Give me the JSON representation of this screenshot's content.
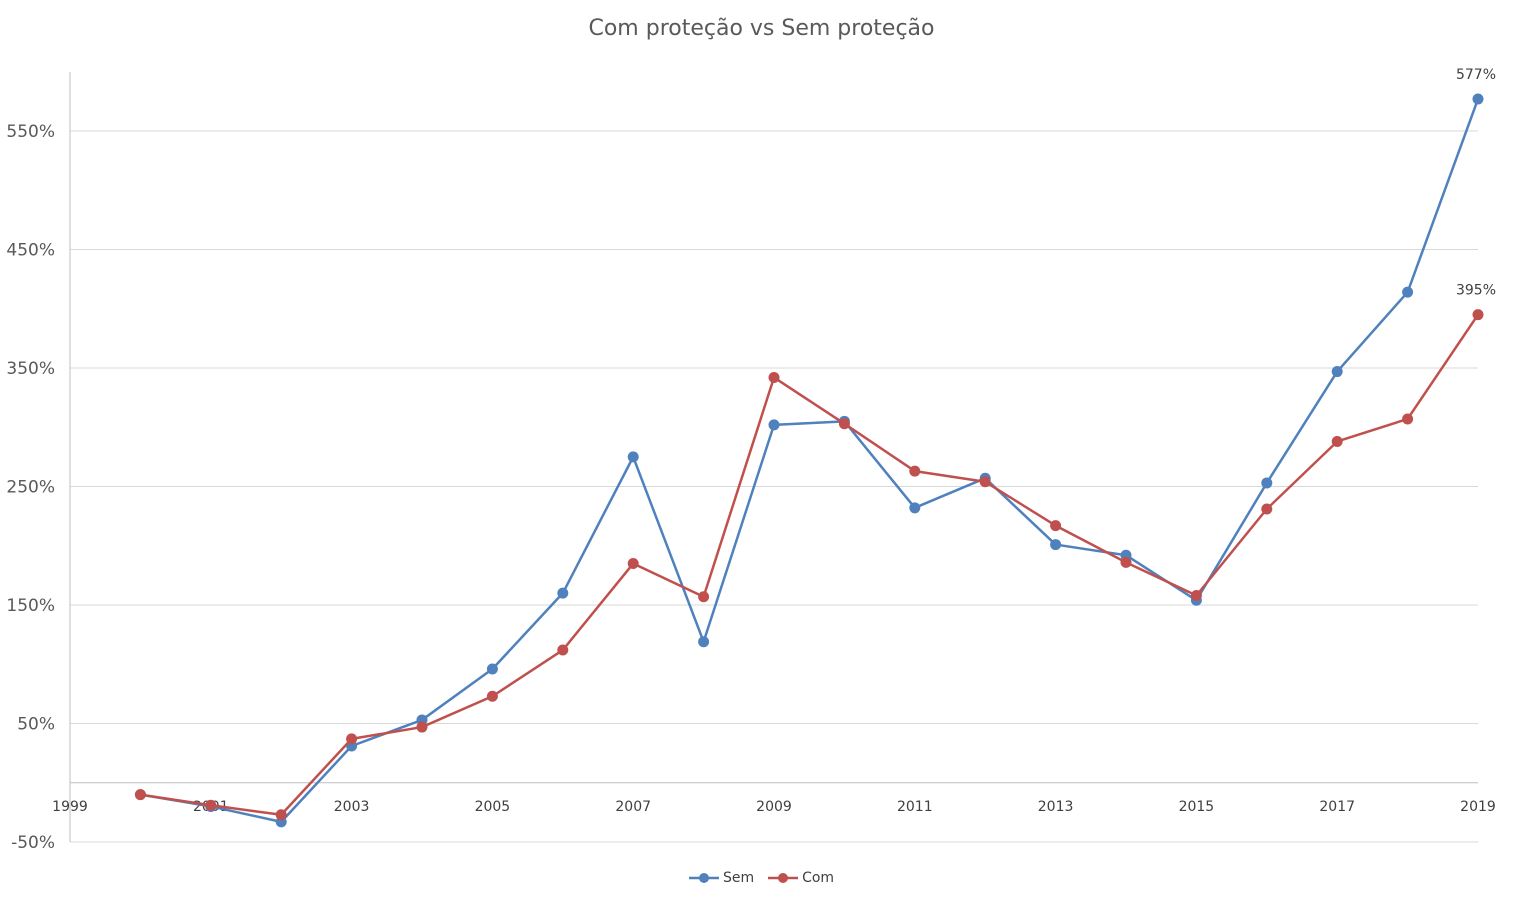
{
  "chart_data": {
    "type": "line",
    "title": "Com proteção vs Sem proteção",
    "xlabel": "",
    "ylabel": "",
    "x": [
      2000,
      2001,
      2002,
      2003,
      2004,
      2005,
      2006,
      2007,
      2008,
      2009,
      2010,
      2011,
      2012,
      2013,
      2014,
      2015,
      2016,
      2017,
      2018,
      2019
    ],
    "x_ticks": [
      "1999",
      "2001",
      "2003",
      "2005",
      "2007",
      "2009",
      "2011",
      "2013",
      "2015",
      "2017",
      "2019"
    ],
    "xlim": [
      1999,
      2019
    ],
    "y_ticks": [
      "550%",
      "450%",
      "350%",
      "250%",
      "150%",
      "50%",
      "-50%"
    ],
    "y_tick_values": [
      550,
      450,
      350,
      250,
      150,
      50,
      -50
    ],
    "ylim": [
      -50,
      600
    ],
    "grid": true,
    "legend_position": "bottom",
    "series": [
      {
        "name": "Sem",
        "color": "#4F81BD",
        "values": [
          -10,
          -20,
          -33,
          31,
          53,
          96,
          160,
          275,
          119,
          302,
          305,
          232,
          257,
          201,
          192,
          154,
          253,
          347,
          414,
          577
        ],
        "end_label": "577%"
      },
      {
        "name": "Com",
        "color": "#C0504D",
        "values": [
          -10,
          -19,
          -27,
          37,
          47,
          73,
          112,
          185,
          157,
          342,
          303,
          263,
          254,
          217,
          186,
          158,
          231,
          288,
          307,
          395
        ],
        "end_label": "395%"
      }
    ]
  }
}
